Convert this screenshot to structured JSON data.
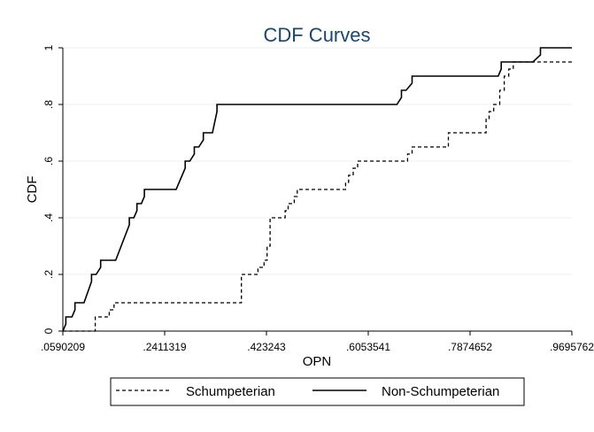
{
  "chart_data": {
    "type": "line",
    "title": "CDF Curves",
    "xlabel": "OPN",
    "ylabel": "CDF",
    "xlim": [
      0.0590209,
      0.9695762
    ],
    "ylim": [
      0,
      1
    ],
    "x_ticks": [
      0.0590209,
      0.2411319,
      0.423243,
      0.6053541,
      0.7874652,
      0.9695762
    ],
    "x_tick_labels": [
      ".0590209",
      ".2411319",
      ".423243",
      ".6053541",
      ".7874652",
      ".9695762"
    ],
    "y_ticks": [
      0,
      0.2,
      0.4,
      0.6,
      0.8,
      1
    ],
    "y_tick_labels": [
      "0",
      ".2",
      ".4",
      ".6",
      ".8",
      "1"
    ],
    "grid": true,
    "legend_position": "bottom",
    "series": [
      {
        "name": "Schumpeterian",
        "line_style": "dashed",
        "points": [
          [
            0.0590209,
            0
          ],
          [
            0.117,
            0
          ],
          [
            0.117,
            0.05
          ],
          [
            0.142,
            0.05
          ],
          [
            0.142,
            0.075
          ],
          [
            0.1506,
            0.075
          ],
          [
            0.1506,
            0.1
          ],
          [
            0.3784,
            0.1
          ],
          [
            0.3784,
            0.2
          ],
          [
            0.4081,
            0.2
          ],
          [
            0.4081,
            0.225
          ],
          [
            0.4189,
            0.225
          ],
          [
            0.4189,
            0.25
          ],
          [
            0.4243,
            0.25
          ],
          [
            0.4243,
            0.3
          ],
          [
            0.4297,
            0.3
          ],
          [
            0.4297,
            0.4
          ],
          [
            0.4567,
            0.4
          ],
          [
            0.4567,
            0.425
          ],
          [
            0.4621,
            0.425
          ],
          [
            0.4621,
            0.45
          ],
          [
            0.4729,
            0.45
          ],
          [
            0.4729,
            0.475
          ],
          [
            0.4784,
            0.475
          ],
          [
            0.4784,
            0.5
          ],
          [
            0.5648,
            0.5
          ],
          [
            0.5648,
            0.525
          ],
          [
            0.5702,
            0.525
          ],
          [
            0.5702,
            0.55
          ],
          [
            0.5784,
            0.55
          ],
          [
            0.5784,
            0.575
          ],
          [
            0.5864,
            0.575
          ],
          [
            0.5864,
            0.6
          ],
          [
            0.6757,
            0.6
          ],
          [
            0.6757,
            0.625
          ],
          [
            0.6837,
            0.625
          ],
          [
            0.6837,
            0.65
          ],
          [
            0.7486,
            0.65
          ],
          [
            0.7486,
            0.7
          ],
          [
            0.8162,
            0.7
          ],
          [
            0.8162,
            0.75
          ],
          [
            0.8215,
            0.75
          ],
          [
            0.8215,
            0.775
          ],
          [
            0.8297,
            0.775
          ],
          [
            0.8297,
            0.8
          ],
          [
            0.8405,
            0.8
          ],
          [
            0.8405,
            0.85
          ],
          [
            0.8486,
            0.85
          ],
          [
            0.8486,
            0.9
          ],
          [
            0.8567,
            0.9
          ],
          [
            0.8567,
            0.925
          ],
          [
            0.8648,
            0.925
          ],
          [
            0.8648,
            0.95
          ],
          [
            0.9696,
            0.95
          ]
        ]
      },
      {
        "name": "Non-Schumpeterian",
        "line_style": "solid",
        "points": [
          [
            0.0590209,
            0
          ],
          [
            0.0644,
            0.025
          ],
          [
            0.0644,
            0.05
          ],
          [
            0.0753,
            0.05
          ],
          [
            0.0807,
            0.075
          ],
          [
            0.0807,
            0.1
          ],
          [
            0.0969,
            0.1
          ],
          [
            0.1104,
            0.175
          ],
          [
            0.1104,
            0.2
          ],
          [
            0.1185,
            0.2
          ],
          [
            0.1266,
            0.225
          ],
          [
            0.1266,
            0.25
          ],
          [
            0.1536,
            0.25
          ],
          [
            0.1779,
            0.375
          ],
          [
            0.1779,
            0.4
          ],
          [
            0.1861,
            0.4
          ],
          [
            0.1915,
            0.425
          ],
          [
            0.1915,
            0.45
          ],
          [
            0.1995,
            0.45
          ],
          [
            0.2049,
            0.475
          ],
          [
            0.2049,
            0.5
          ],
          [
            0.2617,
            0.5
          ],
          [
            0.2779,
            0.575
          ],
          [
            0.2779,
            0.6
          ],
          [
            0.2861,
            0.6
          ],
          [
            0.2942,
            0.625
          ],
          [
            0.2942,
            0.65
          ],
          [
            0.3023,
            0.65
          ],
          [
            0.3104,
            0.675
          ],
          [
            0.3104,
            0.7
          ],
          [
            0.3266,
            0.7
          ],
          [
            0.3347,
            0.775
          ],
          [
            0.3347,
            0.8
          ],
          [
            0.6567,
            0.8
          ],
          [
            0.6648,
            0.825
          ],
          [
            0.6648,
            0.85
          ],
          [
            0.6729,
            0.85
          ],
          [
            0.6838,
            0.875
          ],
          [
            0.6838,
            0.9
          ],
          [
            0.8378,
            0.9
          ],
          [
            0.8432,
            0.925
          ],
          [
            0.8432,
            0.95
          ],
          [
            0.8999,
            0.95
          ],
          [
            0.9134,
            0.975
          ],
          [
            0.9134,
            1
          ],
          [
            0.9696,
            1
          ]
        ]
      }
    ]
  }
}
